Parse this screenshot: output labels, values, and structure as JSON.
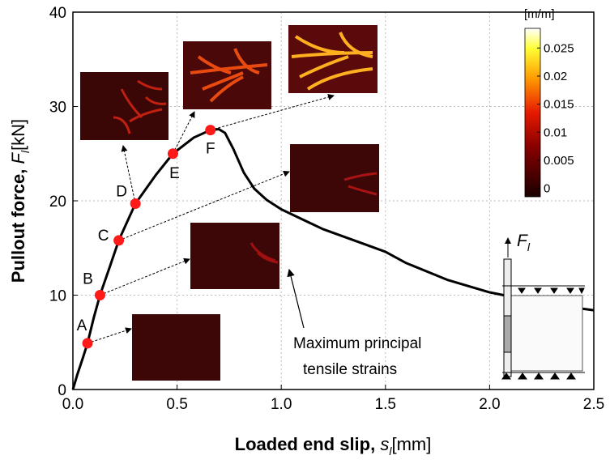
{
  "chart_data": {
    "type": "line",
    "xlabel": {
      "text": "Loaded end slip,",
      "symbol": "s",
      "subscript": "l",
      "unit": "[mm]"
    },
    "ylabel": {
      "text": "Pullout force,",
      "symbol": "F",
      "subscript": "l",
      "unit": "[kN]"
    },
    "xlim": [
      0,
      2.5
    ],
    "xticks": [
      {
        "value": 0,
        "label": "0.0"
      },
      {
        "value": 0.5,
        "label": "0.5"
      },
      {
        "value": 1,
        "label": "1.0"
      },
      {
        "value": 1.5,
        "label": "1.5"
      },
      {
        "value": 2,
        "label": "2.0"
      },
      {
        "value": 2.5,
        "label": "2.5"
      }
    ],
    "ylim": [
      0,
      40
    ],
    "yticks": [
      0,
      10,
      20,
      30,
      40
    ],
    "grid": true,
    "series": [
      {
        "color": "#000000",
        "x": [
          0,
          0.02,
          0.05,
          0.07,
          0.1,
          0.13,
          0.18,
          0.22,
          0.3,
          0.4,
          0.48,
          0.58,
          0.66,
          0.7,
          0.73,
          0.77,
          0.82,
          0.87,
          0.93,
          1.0,
          1.2,
          1.4,
          1.5,
          1.6,
          1.8,
          2.0,
          2.2,
          2.4,
          2.5
        ],
        "values": [
          0,
          1.5,
          3.5,
          4.9,
          7.6,
          10,
          13.2,
          15.8,
          19.7,
          22.8,
          25,
          26.7,
          27.5,
          27.6,
          27.2,
          25.5,
          23,
          21.3,
          20.1,
          19.1,
          17,
          15.4,
          14.6,
          13.4,
          11.6,
          10.3,
          9.4,
          8.7,
          8.4
        ]
      },
      {
        "type": "scatter",
        "color": "#ff1a1a",
        "labels": [
          "A",
          "B",
          "C",
          "D",
          "E",
          "F"
        ],
        "x": [
          0.07,
          0.13,
          0.22,
          0.3,
          0.48,
          0.66
        ],
        "values": [
          4.9,
          10,
          15.8,
          19.7,
          25,
          27.5
        ]
      }
    ],
    "colorbar": {
      "label": "[m/m]",
      "lim": [
        -0.0015,
        0.0285
      ],
      "ticks": [
        0,
        0.005,
        0.01,
        0.015,
        0.02,
        0.025
      ]
    },
    "annotation": [
      "Maximum principal",
      "tensile strains"
    ],
    "force_label": {
      "symbol": "F",
      "subscript": "l"
    }
  }
}
